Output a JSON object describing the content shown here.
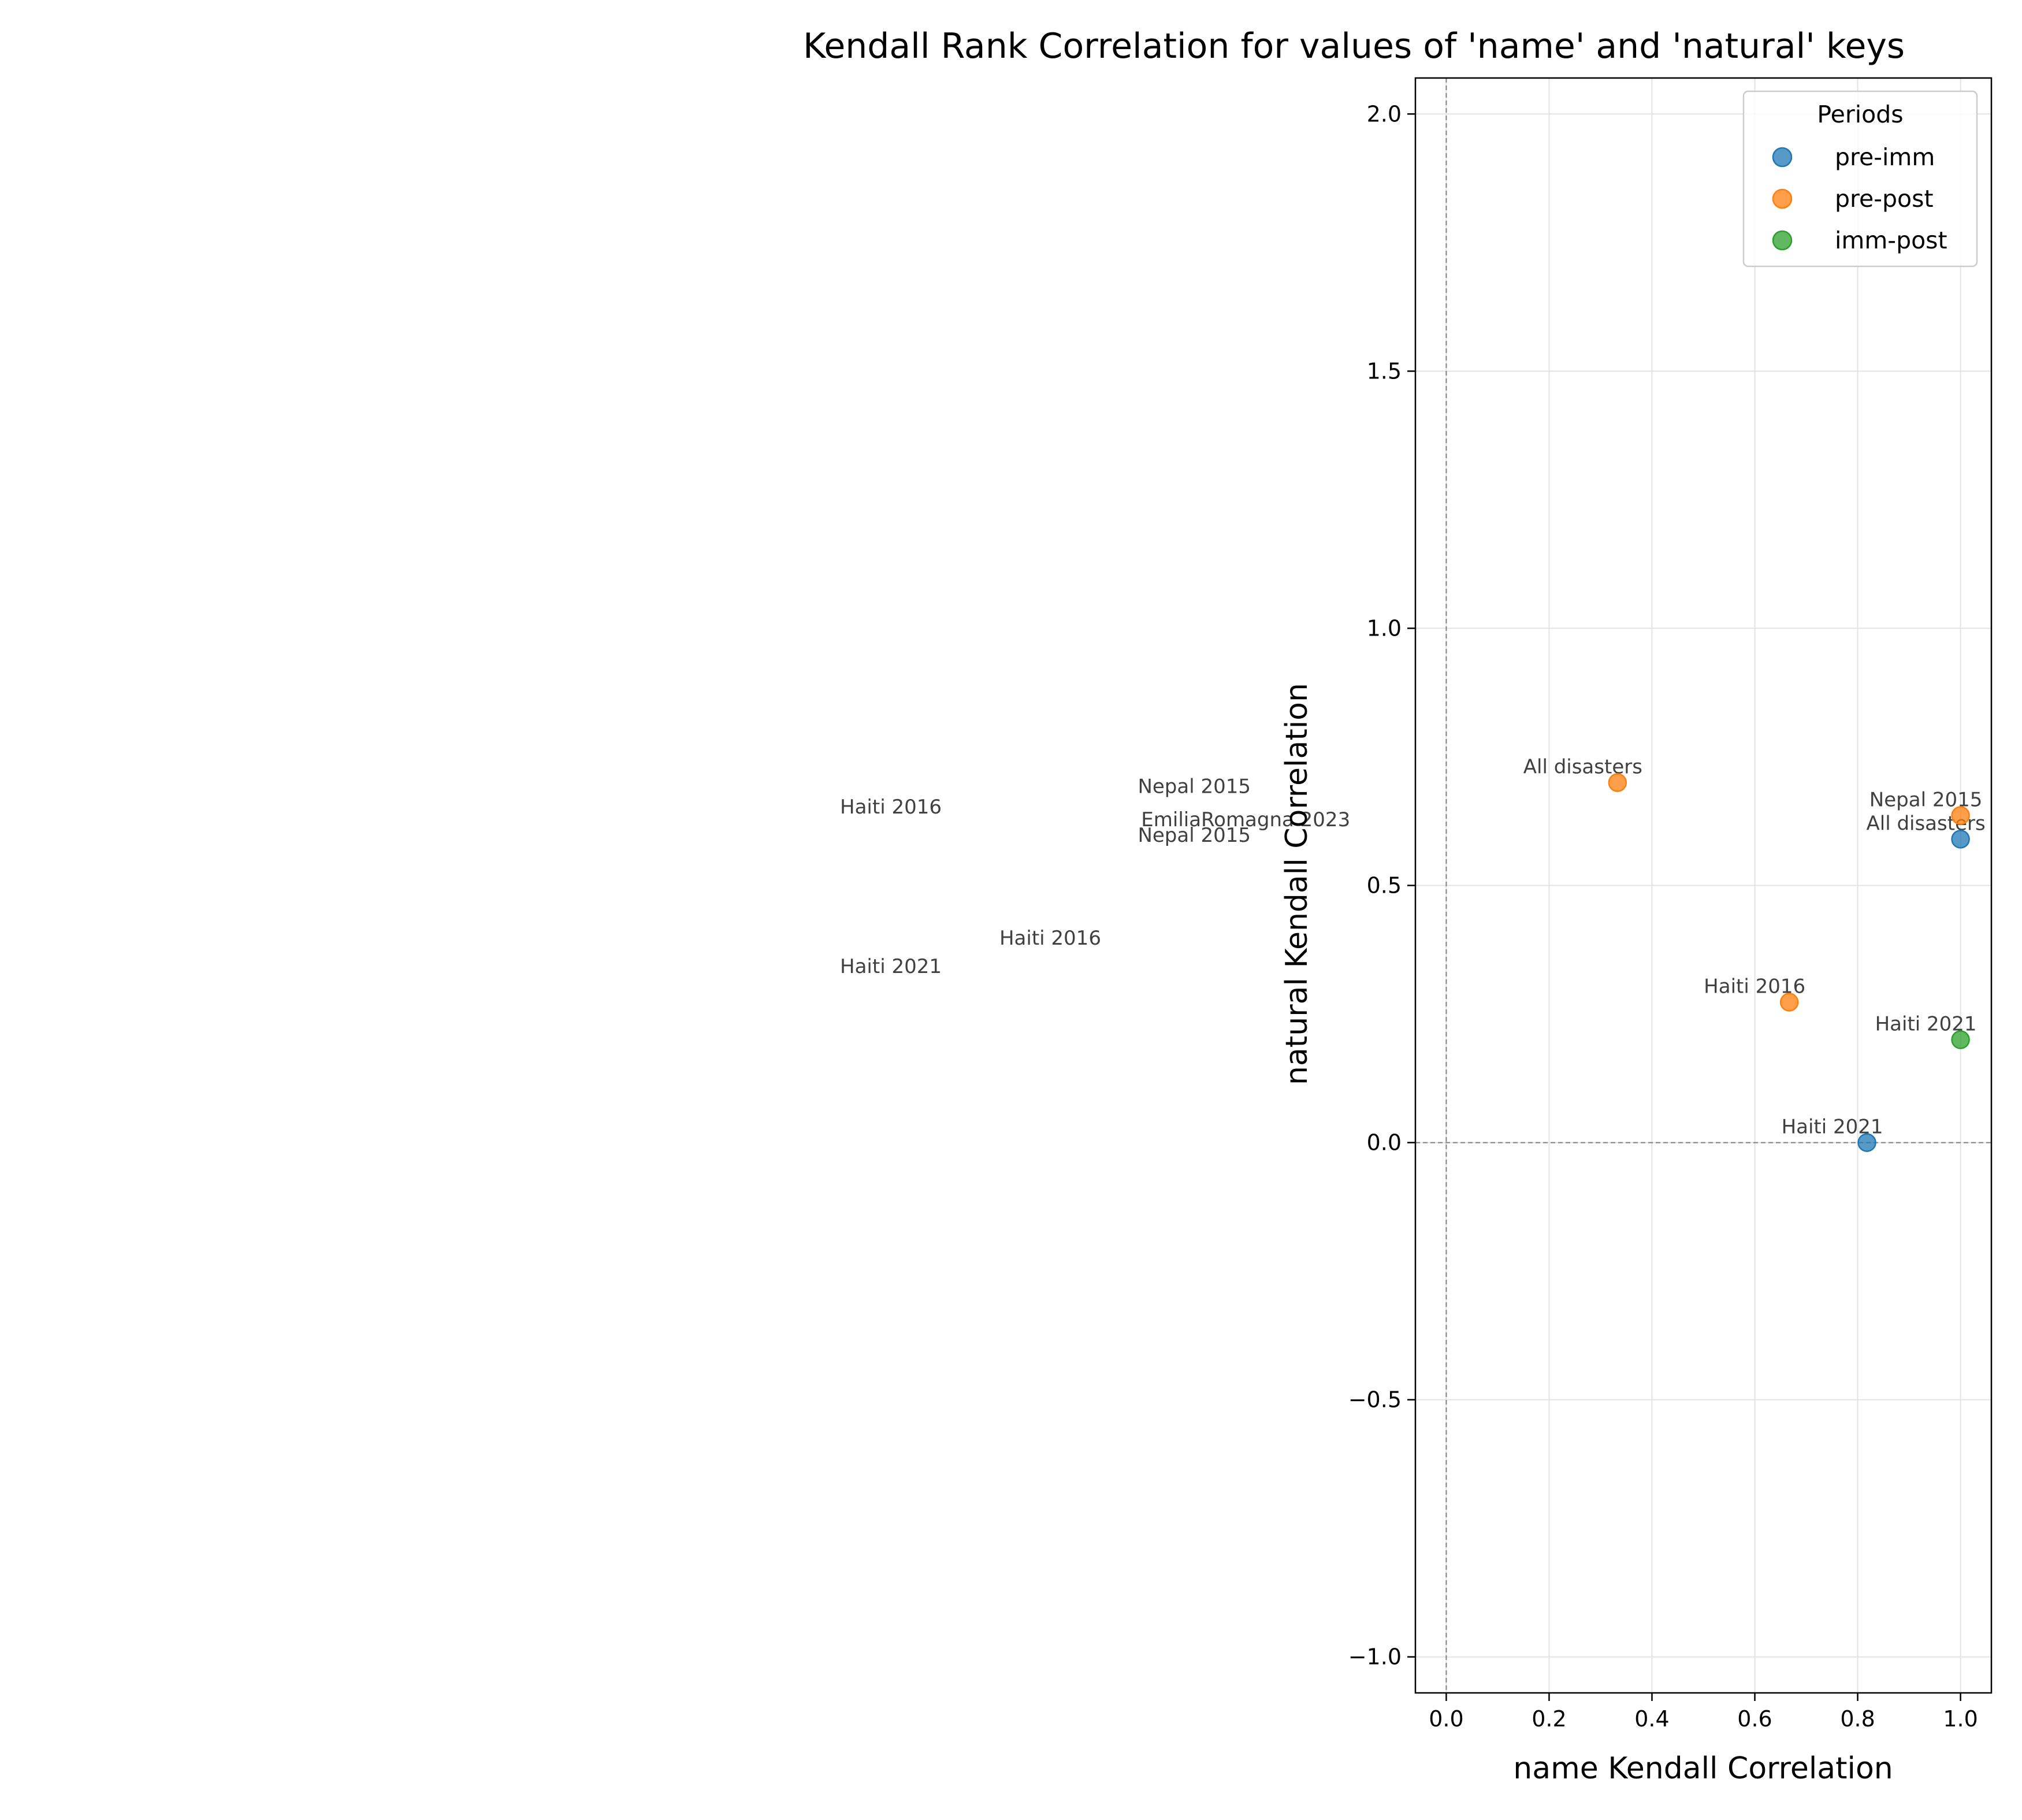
{
  "chart_data": {
    "type": "scatter",
    "title": "Kendall Rank Correlation for values of 'name' and 'natural' keys",
    "xlabel": "name Kendall Correlation",
    "ylabel": "natural Kendall Correlation",
    "xlim": [
      -0.06,
      1.06
    ],
    "ylim": [
      -1.07,
      2.07
    ],
    "xticks": [
      0.0,
      0.2,
      0.4,
      0.6,
      0.8,
      1.0
    ],
    "xtick_labels": [
      "0.0",
      "0.2",
      "0.4",
      "0.6",
      "0.8",
      "1.0"
    ],
    "yticks": [
      -1.0,
      -0.5,
      0.0,
      0.5,
      1.0,
      1.5,
      2.0
    ],
    "ytick_labels": [
      "−1.0",
      "−0.5",
      "0.0",
      "0.5",
      "1.0",
      "1.5",
      "2.0"
    ],
    "grid": true,
    "reference_lines": {
      "x": 0,
      "y": 0
    },
    "legend": {
      "title": "Periods",
      "placement": "top-right"
    },
    "series": [
      {
        "name": "pre-imm",
        "color": "#1f77b4",
        "points": [
          {
            "x": 1.0,
            "y": 0.59,
            "label": "All disasters"
          },
          {
            "x": 0.818,
            "y": 0.0,
            "label": "Haiti 2021"
          }
        ]
      },
      {
        "name": "pre-post",
        "color": "#ff7f0e",
        "points": [
          {
            "x": 0.333,
            "y": 0.7,
            "label": "All disasters"
          },
          {
            "x": 1.0,
            "y": 0.636,
            "label": "Nepal 2015"
          },
          {
            "x": 0.667,
            "y": 0.273,
            "label": "Haiti 2016"
          }
        ]
      },
      {
        "name": "imm-post",
        "color": "#2ca02c",
        "points": [
          {
            "x": 1.0,
            "y": 0.2,
            "label": "Haiti 2021"
          }
        ]
      }
    ],
    "offscreen_annotations": [
      {
        "text": "Haiti 2016",
        "x": -1.08,
        "y": 0.64
      },
      {
        "text": "Nepal 2015",
        "x": -0.49,
        "y": 0.68
      },
      {
        "text": "EmiliaRomagna 2023",
        "x": -0.39,
        "y": 0.615
      },
      {
        "text": "Nepal 2015",
        "x": -0.49,
        "y": 0.585
      },
      {
        "text": "Haiti 2016",
        "x": -0.77,
        "y": 0.385
      },
      {
        "text": "Haiti 2021",
        "x": -1.08,
        "y": 0.33
      }
    ]
  }
}
